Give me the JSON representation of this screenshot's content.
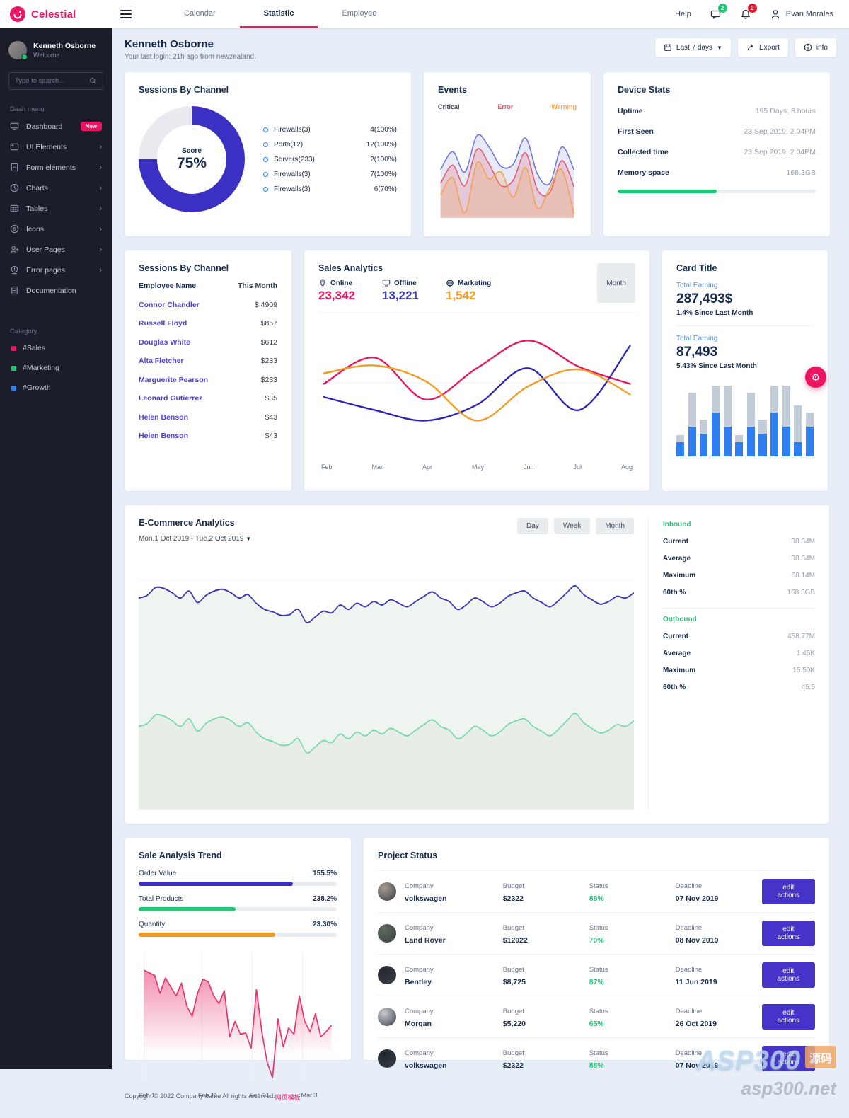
{
  "header": {
    "brand": "Celestial",
    "tabs": [
      {
        "label": "Calendar",
        "active": false
      },
      {
        "label": "Statistic",
        "active": true
      },
      {
        "label": "Employee",
        "active": false
      }
    ],
    "help_label": "Help",
    "chat_badge": "2",
    "bell_badge": "2",
    "user_name": "Evan Morales"
  },
  "sidebar": {
    "user": {
      "name": "Kenneth Osborne",
      "status": "Welcome"
    },
    "search_placeholder": "Type to search...",
    "menu_label": "Dash menu",
    "items": [
      {
        "label": "Dashboard",
        "icon": "dashboard-icon",
        "badge": "New"
      },
      {
        "label": "UI Elements",
        "icon": "ui-elements-icon",
        "chevron": true
      },
      {
        "label": "Form elements",
        "icon": "form-elements-icon",
        "chevron": true
      },
      {
        "label": "Charts",
        "icon": "charts-icon",
        "chevron": true
      },
      {
        "label": "Tables",
        "icon": "tables-icon",
        "chevron": true
      },
      {
        "label": "Icons",
        "icon": "icons-icon",
        "chevron": true
      },
      {
        "label": "User Pages",
        "icon": "user-pages-icon",
        "chevron": true
      },
      {
        "label": "Error pages",
        "icon": "error-pages-icon",
        "chevron": true
      },
      {
        "label": "Documentation",
        "icon": "documentation-icon"
      }
    ],
    "category_label": "Category",
    "categories": [
      {
        "label": "#Sales",
        "color": "#ec1562"
      },
      {
        "label": "#Marketing",
        "color": "#1ec973"
      },
      {
        "label": "#Growth",
        "color": "#2e80f0"
      }
    ]
  },
  "page": {
    "title": "Kenneth Osborne",
    "subtitle": "Your last login: 21h ago from newzealand.",
    "range_button": "Last 7 days",
    "export_button": "Export",
    "info_button": "info"
  },
  "donut_card": {
    "title": "Sessions By Channel",
    "score_label": "Score",
    "score_value": "75%",
    "legend": [
      {
        "label": "Firewalls(3)",
        "value": "4(100%)"
      },
      {
        "label": "Ports(12)",
        "value": "12(100%)"
      },
      {
        "label": "Servers(233)",
        "value": "2(100%)"
      },
      {
        "label": "Firewalls(3)",
        "value": "7(100%)"
      },
      {
        "label": "Firewalls(3)",
        "value": "6(70%)"
      }
    ]
  },
  "events_card": {
    "title": "Events"
  },
  "device_card": {
    "title": "Device Stats",
    "rows": [
      {
        "label": "Uptime",
        "value": "195 Days, 8 hours"
      },
      {
        "label": "First Seen",
        "value": "23 Sep 2019, 2.04PM"
      },
      {
        "label": "Collected time",
        "value": "23 Sep 2019, 2.04PM"
      },
      {
        "label": "Memory space",
        "value": "168.3GB"
      }
    ],
    "memory_pct": 50,
    "memory_color": "#1ec973"
  },
  "employee_card": {
    "title": "Sessions By Channel",
    "col_name": "Employee Name",
    "col_month": "This Month",
    "rows": [
      {
        "name": "Connor Chandler",
        "value": "$ 4909"
      },
      {
        "name": "Russell Floyd",
        "value": "$857"
      },
      {
        "name": "Douglas White",
        "value": "$612"
      },
      {
        "name": "Alta Fletcher",
        "value": "$233"
      },
      {
        "name": "Marguerite Pearson",
        "value": "$233"
      },
      {
        "name": "Leonard Gutierrez",
        "value": "$35"
      },
      {
        "name": "Helen Benson",
        "value": "$43"
      },
      {
        "name": "Helen Benson",
        "value": "$43"
      }
    ]
  },
  "sales_card": {
    "title": "Sales Analytics",
    "month_button": "Month",
    "stats": [
      {
        "label": "Online",
        "value": "23,342",
        "color": "#ec1562",
        "icon": "mouse-icon"
      },
      {
        "label": "Offline",
        "value": "13,221",
        "color": "#3f3dc4",
        "icon": "monitor-icon"
      },
      {
        "label": "Marketing",
        "value": "1,542",
        "color": "#f59b23",
        "icon": "globe-icon"
      }
    ]
  },
  "earning_card": {
    "title": "Card Title",
    "sections": [
      {
        "label": "Total Earning",
        "value": "287,493$",
        "note": "1.4% Since Last Month"
      },
      {
        "label": "Total Earning",
        "value": "87,493",
        "note": "5.43% Since Last Month"
      }
    ]
  },
  "ecommerce_card": {
    "title": "E-Commerce Analytics",
    "date_range": "Mon,1 Oct 2019 - Tue,2 Oct 2019",
    "buttons": [
      "Day",
      "Week",
      "Month"
    ],
    "inbound_label": "Inbound",
    "inbound": [
      {
        "label": "Current",
        "value": "38.34M"
      },
      {
        "label": "Average",
        "value": "38.34M"
      },
      {
        "label": "Maximum",
        "value": "68.14M"
      },
      {
        "label": "60th %",
        "value": "168.3GB"
      }
    ],
    "outbound_label": "Outbound",
    "outbound": [
      {
        "label": "Current",
        "value": "458.77M"
      },
      {
        "label": "Average",
        "value": "1.45K"
      },
      {
        "label": "Maximum",
        "value": "15.50K"
      },
      {
        "label": "60th %",
        "value": "45.5"
      }
    ]
  },
  "trend_card": {
    "title": "Sale Analysis Trend",
    "bars": [
      {
        "label": "Order Value",
        "value": "155.5%",
        "pct": 78,
        "color": "#3b2fc4"
      },
      {
        "label": "Total Products",
        "value": "238.2%",
        "pct": 49,
        "color": "#1ec973"
      },
      {
        "label": "Quantity",
        "value": "23.30%",
        "pct": 69,
        "color": "#f59b23"
      }
    ]
  },
  "projects_card": {
    "title": "Project Status",
    "company_label": "Company",
    "budget_label": "Budget",
    "status_label": "Status",
    "deadline_label": "Deadline",
    "edit_label": "edit actions",
    "rows": [
      {
        "name": "volkswagen",
        "budget": "$2322",
        "status": "88%",
        "deadline": "07 Nov 2019",
        "avatar_color": "#a89a90"
      },
      {
        "name": "Land Rover",
        "budget": "$12022",
        "status": "70%",
        "deadline": "08 Nov 2019",
        "avatar_color": "#5f6b5c"
      },
      {
        "name": "Bentley",
        "budget": "$8,725",
        "status": "87%",
        "deadline": "11 Jun 2019",
        "avatar_color": "#27272f"
      },
      {
        "name": "Morgan",
        "budget": "$5,220",
        "status": "65%",
        "deadline": "26 Oct 2019",
        "avatar_color": "#c9ccd1"
      },
      {
        "name": "volkswagen",
        "budget": "$2322",
        "status": "88%",
        "deadline": "07 Nov 2019",
        "avatar_color": "#20262e"
      }
    ]
  },
  "footer": {
    "copyright": "Copyright © 2022.Company name All rights reserved.",
    "link": "网页模板"
  },
  "watermark": {
    "line1": "ASP300",
    "tag": "源码",
    "line2": "asp300.net"
  },
  "chart_data": {
    "score_donut": {
      "type": "pie",
      "title": "Sessions By Channel",
      "value_pct": 75,
      "color": "#3b2fc4",
      "rest_color": "#e9eaf0"
    },
    "events": {
      "type": "area",
      "title": "Events",
      "legend_position": "top",
      "series": [
        {
          "name": "Critical",
          "color": "#6d74d8",
          "fill": "rgba(122,130,216,0.18)",
          "legend_color": "#39405e",
          "values": [
            42,
            58,
            40,
            72,
            62,
            45,
            47,
            70,
            38,
            30,
            62,
            42
          ]
        },
        {
          "name": "Error",
          "color": "#e05a6e",
          "fill": "rgba(224,90,110,0.22)",
          "legend_color": "#e05a6e",
          "values": [
            30,
            46,
            28,
            60,
            47,
            28,
            33,
            57,
            24,
            22,
            50,
            27
          ]
        },
        {
          "name": "Warning",
          "color": "#f2a24e",
          "fill": "rgba(242,162,78,0.25)",
          "legend_color": "#f2a24e",
          "values": [
            20,
            35,
            4,
            48,
            34,
            40,
            18,
            44,
            8,
            26,
            42,
            3
          ]
        }
      ],
      "ylim": [
        0,
        80
      ],
      "grid": false
    },
    "sales_analytics": {
      "type": "line",
      "title": "Sales Analytics",
      "categories": [
        "Feb",
        "Mar",
        "Apr",
        "May",
        "Jun",
        "Jul",
        "Aug"
      ],
      "series": [
        {
          "name": "Online",
          "color": "#e8175d",
          "values": [
            50,
            70,
            38,
            62,
            83,
            63,
            50
          ]
        },
        {
          "name": "Offline",
          "color": "#2d25b8",
          "values": [
            40,
            30,
            22,
            34,
            62,
            30,
            79
          ]
        },
        {
          "name": "Marketing",
          "color": "#f59b23",
          "values": [
            58,
            64,
            52,
            22,
            48,
            61,
            42
          ]
        }
      ],
      "ylim": [
        0,
        100
      ],
      "grid": true
    },
    "earning_bars": {
      "type": "bar",
      "totals": [
        30,
        90,
        52,
        100,
        100,
        30,
        90,
        52,
        100,
        100,
        72,
        62
      ],
      "values": [
        20,
        42,
        32,
        62,
        42,
        20,
        42,
        32,
        62,
        42,
        20,
        42
      ],
      "total_color": "#c3cdd9",
      "value_color": "#2e80f0"
    },
    "ecommerce": {
      "type": "area",
      "title": "E-Commerce Analytics",
      "series": [
        {
          "name": "Inbound",
          "color": "#3d35b5",
          "fill": "#eef4f0"
        },
        {
          "name": "Outbound",
          "color": "#72d8a8",
          "fill": "#e8ede8"
        }
      ],
      "waveform": [
        60,
        63,
        72,
        71,
        66,
        60,
        68,
        55,
        63,
        68,
        70,
        66,
        60,
        64,
        54,
        47,
        44,
        40,
        41,
        47,
        32,
        38,
        45,
        43,
        52,
        47,
        54,
        50,
        56,
        52,
        58,
        54,
        50,
        56,
        62,
        67,
        60,
        56,
        47,
        52,
        60,
        56,
        50,
        54,
        62,
        66,
        68,
        60,
        55,
        50,
        57,
        66,
        74,
        64,
        58,
        53,
        56,
        62,
        60,
        66
      ],
      "grid": true
    },
    "sale_trend": {
      "type": "area",
      "title": "Sale Analysis Trend",
      "color": "#e8346c",
      "categories": [
        "Feb 1",
        "Feb 11",
        "Feb 21",
        "Mar 3"
      ],
      "values": [
        88,
        86,
        84,
        70,
        82,
        75,
        68,
        78,
        60,
        52,
        70,
        81,
        79,
        68,
        62,
        72,
        36,
        48,
        38,
        39,
        27,
        73,
        40,
        16,
        4,
        50,
        28,
        43,
        38,
        68,
        48,
        40,
        54,
        36,
        40,
        45
      ],
      "ylim": [
        0,
        100
      ],
      "grid": true
    }
  }
}
